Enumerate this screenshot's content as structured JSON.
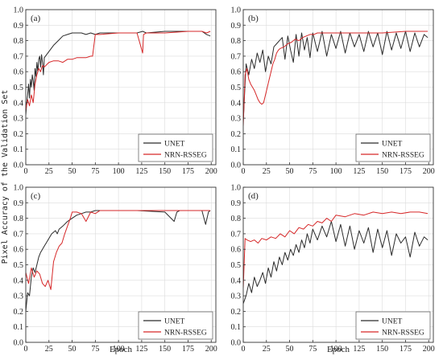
{
  "figure": {
    "ylabel": "Pixel Accuracy of the Validation Set",
    "xlabel": "Epoch"
  },
  "colors": {
    "UNET": "#2b2b2b",
    "NRN-RSSEG": "#d62728",
    "grid": "#dcdcdc",
    "axis": "#333333"
  },
  "chart_data": [
    {
      "type": "line",
      "panel": "(a)",
      "xlim": [
        0,
        205
      ],
      "ylim": [
        0.0,
        1.0
      ],
      "xticks": [
        0,
        25,
        50,
        75,
        100,
        125,
        150,
        175,
        200
      ],
      "yticks": [
        0.0,
        0.1,
        0.2,
        0.3,
        0.4,
        0.5,
        0.6,
        0.7,
        0.8,
        0.9,
        1.0
      ],
      "grid": true,
      "legend_position": "bottom-right",
      "series": [
        {
          "name": "UNET",
          "color": "#2b2b2b",
          "x": [
            0,
            1,
            2,
            3,
            4,
            5,
            6,
            7,
            8,
            9,
            10,
            11,
            12,
            13,
            14,
            15,
            16,
            17,
            18,
            19,
            20,
            25,
            30,
            35,
            40,
            45,
            50,
            55,
            60,
            65,
            70,
            75,
            80,
            100,
            120,
            126,
            130,
            150,
            175,
            190,
            195,
            199
          ],
          "y": [
            0.32,
            0.4,
            0.45,
            0.52,
            0.43,
            0.55,
            0.5,
            0.58,
            0.54,
            0.48,
            0.62,
            0.57,
            0.66,
            0.6,
            0.68,
            0.7,
            0.63,
            0.71,
            0.66,
            0.58,
            0.69,
            0.73,
            0.77,
            0.8,
            0.83,
            0.84,
            0.85,
            0.85,
            0.85,
            0.84,
            0.85,
            0.84,
            0.85,
            0.85,
            0.85,
            0.86,
            0.85,
            0.86,
            0.86,
            0.86,
            0.84,
            0.83
          ]
        },
        {
          "name": "NRN-RSSEG",
          "color": "#d62728",
          "x": [
            0,
            2,
            4,
            6,
            8,
            10,
            12,
            14,
            16,
            18,
            20,
            25,
            30,
            35,
            40,
            45,
            50,
            55,
            60,
            65,
            70,
            72,
            75,
            80,
            100,
            120,
            126,
            127,
            130,
            150,
            175,
            190,
            195,
            199
          ],
          "y": [
            0.35,
            0.42,
            0.38,
            0.45,
            0.4,
            0.52,
            0.58,
            0.62,
            0.6,
            0.64,
            0.63,
            0.66,
            0.67,
            0.67,
            0.66,
            0.68,
            0.68,
            0.69,
            0.69,
            0.69,
            0.7,
            0.7,
            0.84,
            0.84,
            0.85,
            0.85,
            0.72,
            0.84,
            0.85,
            0.85,
            0.86,
            0.86,
            0.85,
            0.86
          ]
        }
      ]
    },
    {
      "type": "line",
      "panel": "(b)",
      "xlim": [
        0,
        205
      ],
      "ylim": [
        0.0,
        1.0
      ],
      "xticks": [
        0,
        25,
        50,
        75,
        100,
        125,
        150,
        175,
        200
      ],
      "yticks": [
        0.0,
        0.1,
        0.2,
        0.3,
        0.4,
        0.5,
        0.6,
        0.7,
        0.8,
        0.9,
        1.0
      ],
      "grid": true,
      "legend_position": "bottom-right",
      "series": [
        {
          "name": "UNET",
          "color": "#2b2b2b",
          "x": [
            0,
            3,
            6,
            9,
            12,
            15,
            18,
            21,
            24,
            27,
            30,
            33,
            36,
            39,
            42,
            45,
            48,
            51,
            54,
            57,
            60,
            63,
            66,
            69,
            72,
            75,
            80,
            85,
            90,
            95,
            100,
            105,
            110,
            115,
            120,
            125,
            130,
            135,
            140,
            145,
            150,
            155,
            160,
            165,
            170,
            175,
            180,
            185,
            190,
            195,
            199
          ],
          "y": [
            0.28,
            0.65,
            0.58,
            0.68,
            0.62,
            0.72,
            0.66,
            0.74,
            0.6,
            0.7,
            0.65,
            0.76,
            0.78,
            0.8,
            0.82,
            0.68,
            0.83,
            0.74,
            0.66,
            0.84,
            0.7,
            0.85,
            0.74,
            0.82,
            0.69,
            0.85,
            0.73,
            0.86,
            0.7,
            0.84,
            0.75,
            0.86,
            0.72,
            0.85,
            0.76,
            0.84,
            0.73,
            0.86,
            0.76,
            0.85,
            0.71,
            0.86,
            0.74,
            0.85,
            0.75,
            0.86,
            0.73,
            0.85,
            0.76,
            0.84,
            0.82
          ]
        },
        {
          "name": "NRN-RSSEG",
          "color": "#d62728",
          "x": [
            0,
            2,
            4,
            6,
            8,
            10,
            12,
            14,
            16,
            18,
            20,
            22,
            24,
            26,
            28,
            30,
            32,
            34,
            36,
            38,
            40,
            44,
            48,
            52,
            56,
            60,
            64,
            68,
            72,
            76,
            80,
            100,
            120,
            150,
            175,
            199
          ],
          "y": [
            0.25,
            0.58,
            0.62,
            0.55,
            0.52,
            0.5,
            0.48,
            0.45,
            0.42,
            0.4,
            0.39,
            0.4,
            0.45,
            0.5,
            0.55,
            0.6,
            0.65,
            0.68,
            0.72,
            0.74,
            0.75,
            0.76,
            0.78,
            0.79,
            0.81,
            0.8,
            0.82,
            0.83,
            0.84,
            0.84,
            0.85,
            0.85,
            0.85,
            0.85,
            0.86,
            0.86
          ]
        }
      ]
    },
    {
      "type": "line",
      "panel": "(c)",
      "xlim": [
        0,
        205
      ],
      "ylim": [
        0.0,
        1.0
      ],
      "xticks": [
        0,
        25,
        50,
        75,
        100,
        125,
        150,
        175,
        200
      ],
      "yticks": [
        0.0,
        0.1,
        0.2,
        0.3,
        0.4,
        0.5,
        0.6,
        0.7,
        0.8,
        0.9,
        1.0
      ],
      "grid": true,
      "legend_position": "bottom-right",
      "series": [
        {
          "name": "UNET",
          "color": "#2b2b2b",
          "x": [
            0,
            2,
            4,
            6,
            8,
            10,
            12,
            14,
            16,
            18,
            20,
            22,
            24,
            26,
            28,
            30,
            32,
            34,
            36,
            38,
            40,
            45,
            50,
            55,
            60,
            65,
            70,
            75,
            80,
            100,
            120,
            150,
            160,
            163,
            166,
            175,
            190,
            194,
            197,
            199
          ],
          "y": [
            0.2,
            0.32,
            0.3,
            0.42,
            0.48,
            0.45,
            0.5,
            0.55,
            0.58,
            0.6,
            0.62,
            0.64,
            0.66,
            0.68,
            0.7,
            0.71,
            0.72,
            0.7,
            0.73,
            0.74,
            0.75,
            0.78,
            0.8,
            0.82,
            0.83,
            0.84,
            0.84,
            0.85,
            0.85,
            0.85,
            0.85,
            0.84,
            0.78,
            0.84,
            0.85,
            0.85,
            0.85,
            0.76,
            0.84,
            0.85
          ]
        },
        {
          "name": "NRN-RSSEG",
          "color": "#d62728",
          "x": [
            0,
            3,
            6,
            9,
            12,
            15,
            18,
            21,
            24,
            27,
            30,
            33,
            36,
            39,
            42,
            45,
            48,
            50,
            55,
            60,
            65,
            70,
            75,
            80,
            100,
            120,
            150,
            175,
            199
          ],
          "y": [
            0.45,
            0.38,
            0.48,
            0.42,
            0.46,
            0.44,
            0.38,
            0.36,
            0.4,
            0.34,
            0.52,
            0.58,
            0.62,
            0.64,
            0.7,
            0.75,
            0.8,
            0.84,
            0.84,
            0.83,
            0.78,
            0.84,
            0.83,
            0.85,
            0.85,
            0.85,
            0.85,
            0.85,
            0.85
          ]
        }
      ]
    },
    {
      "type": "line",
      "panel": "(d)",
      "xlim": [
        0,
        205
      ],
      "ylim": [
        0.0,
        1.0
      ],
      "xticks": [
        0,
        25,
        50,
        75,
        100,
        125,
        150,
        175,
        200
      ],
      "yticks": [
        0.0,
        0.1,
        0.2,
        0.3,
        0.4,
        0.5,
        0.6,
        0.7,
        0.8,
        0.9,
        1.0
      ],
      "grid": true,
      "legend_position": "bottom-right",
      "series": [
        {
          "name": "UNET",
          "color": "#2b2b2b",
          "x": [
            0,
            3,
            6,
            9,
            12,
            15,
            18,
            21,
            24,
            27,
            30,
            33,
            36,
            39,
            42,
            45,
            48,
            51,
            54,
            57,
            60,
            63,
            66,
            69,
            72,
            75,
            80,
            85,
            90,
            95,
            100,
            105,
            110,
            115,
            120,
            125,
            130,
            135,
            140,
            145,
            150,
            155,
            160,
            165,
            170,
            175,
            180,
            185,
            190,
            195,
            199
          ],
          "y": [
            0.25,
            0.3,
            0.38,
            0.32,
            0.42,
            0.36,
            0.4,
            0.45,
            0.38,
            0.48,
            0.42,
            0.52,
            0.46,
            0.55,
            0.5,
            0.58,
            0.53,
            0.6,
            0.56,
            0.63,
            0.58,
            0.66,
            0.61,
            0.7,
            0.64,
            0.73,
            0.66,
            0.75,
            0.68,
            0.78,
            0.65,
            0.76,
            0.62,
            0.75,
            0.6,
            0.72,
            0.64,
            0.74,
            0.58,
            0.73,
            0.61,
            0.72,
            0.56,
            0.7,
            0.64,
            0.68,
            0.55,
            0.71,
            0.62,
            0.68,
            0.66
          ]
        },
        {
          "name": "NRN-RSSEG",
          "color": "#d62728",
          "x": [
            0,
            2,
            4,
            8,
            12,
            16,
            20,
            25,
            30,
            35,
            40,
            45,
            50,
            55,
            60,
            65,
            70,
            75,
            80,
            85,
            90,
            95,
            100,
            110,
            120,
            130,
            140,
            150,
            160,
            170,
            180,
            190,
            199
          ],
          "y": [
            0.35,
            0.67,
            0.66,
            0.65,
            0.66,
            0.64,
            0.67,
            0.66,
            0.68,
            0.67,
            0.7,
            0.68,
            0.72,
            0.7,
            0.74,
            0.73,
            0.76,
            0.75,
            0.78,
            0.77,
            0.8,
            0.78,
            0.82,
            0.81,
            0.83,
            0.82,
            0.84,
            0.83,
            0.84,
            0.83,
            0.84,
            0.84,
            0.83
          ]
        }
      ]
    }
  ]
}
